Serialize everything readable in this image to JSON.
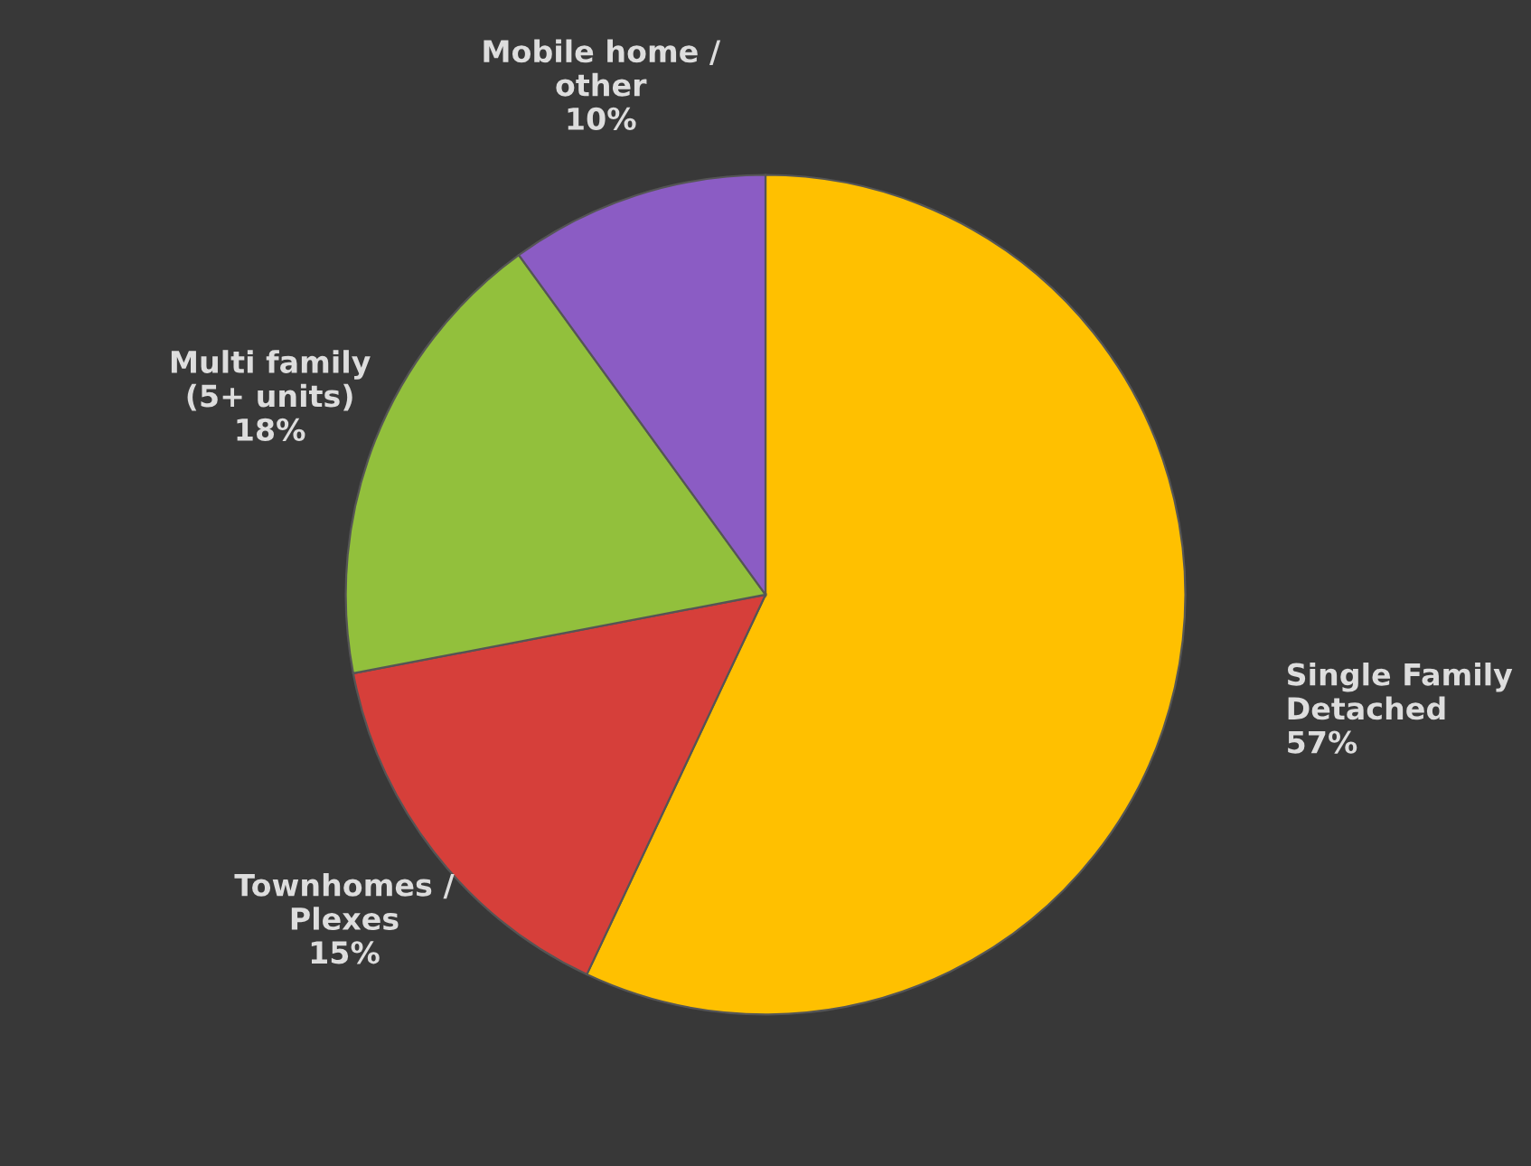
{
  "chart_data": {
    "type": "pie",
    "categories": [
      "Single Family\nDetached",
      "Townhomes /\nPlexes",
      "Multi family\n(5+ units)",
      "Mobile home /\nother"
    ],
    "values": [
      57,
      15,
      18,
      10
    ],
    "colors": [
      "#ffc000",
      "#d63f3a",
      "#92c03c",
      "#8b5cc4"
    ],
    "value_labels": [
      "57%",
      "15%",
      "18%",
      "10%"
    ],
    "legend": false
  }
}
